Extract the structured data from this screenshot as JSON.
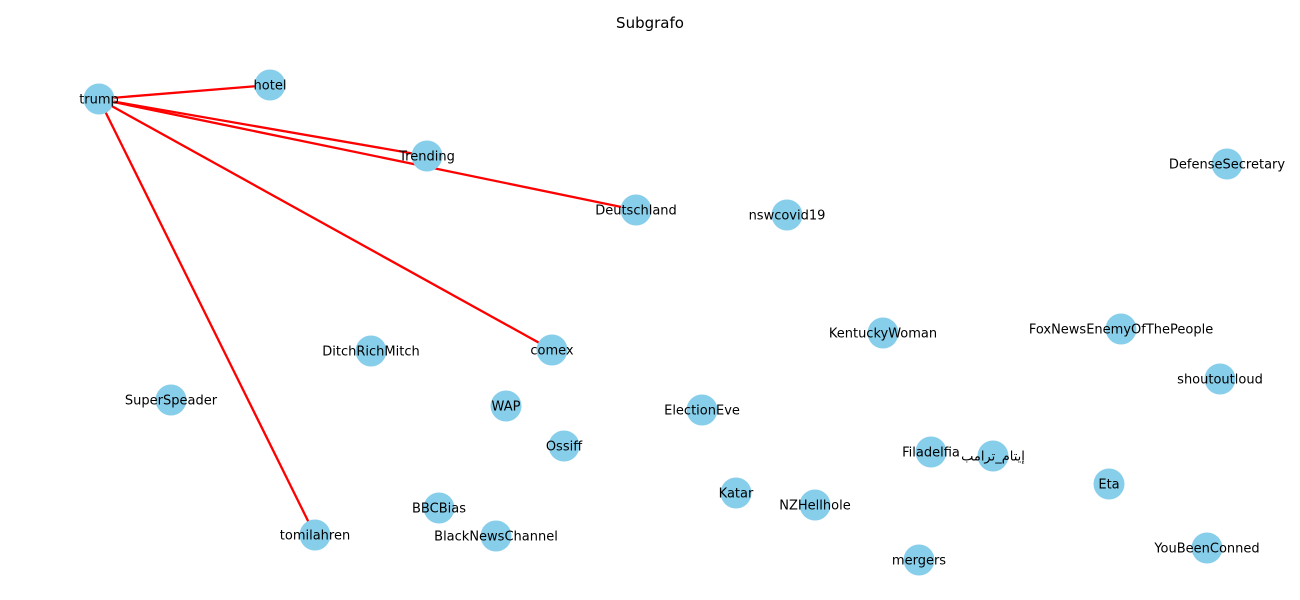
{
  "title": "Subgrafo",
  "colors": {
    "node": "#87ceeb",
    "edge": "#ff0000",
    "label": "#000000"
  },
  "nodes": [
    {
      "id": "trump",
      "label": "trump"
    },
    {
      "id": "hotel",
      "label": "hotel"
    },
    {
      "id": "Trending",
      "label": "Trending"
    },
    {
      "id": "Deutschland",
      "label": "Deutschland"
    },
    {
      "id": "nswcovid19",
      "label": "nswcovid19"
    },
    {
      "id": "DefenseSecretary",
      "label": "DefenseSecretary"
    },
    {
      "id": "comex",
      "label": "comex"
    },
    {
      "id": "DitchRichMitch",
      "label": "DitchRichMitch"
    },
    {
      "id": "KentuckyWoman",
      "label": "KentuckyWoman"
    },
    {
      "id": "FoxNewsEnemyOfThePeople",
      "label": "FoxNewsEnemyOfThePeople"
    },
    {
      "id": "shoutoutloud",
      "label": "shoutoutloud"
    },
    {
      "id": "SuperSpeader",
      "label": "SuperSpeader"
    },
    {
      "id": "WAP",
      "label": "WAP"
    },
    {
      "id": "ElectionEve",
      "label": "ElectionEve"
    },
    {
      "id": "Ossiff",
      "label": "Ossiff"
    },
    {
      "id": "Filadelfia",
      "label": "Filadelfia"
    },
    {
      "id": "arabic",
      "label": "إيتام_ترامب"
    },
    {
      "id": "Eta",
      "label": "Eta"
    },
    {
      "id": "Katar",
      "label": "Katar"
    },
    {
      "id": "NZHellhole",
      "label": "NZHellhole"
    },
    {
      "id": "BBCBias",
      "label": "BBCBias"
    },
    {
      "id": "tomilahren",
      "label": "tomilahren"
    },
    {
      "id": "BlackNewsChannel",
      "label": "BlackNewsChannel"
    },
    {
      "id": "mergers",
      "label": "mergers"
    },
    {
      "id": "YouBeenConned",
      "label": "YouBeenConned"
    }
  ],
  "edges": [
    {
      "source": "trump",
      "target": "hotel"
    },
    {
      "source": "trump",
      "target": "Trending"
    },
    {
      "source": "trump",
      "target": "Deutschland"
    },
    {
      "source": "trump",
      "target": "comex"
    },
    {
      "source": "trump",
      "target": "tomilahren"
    }
  ]
}
